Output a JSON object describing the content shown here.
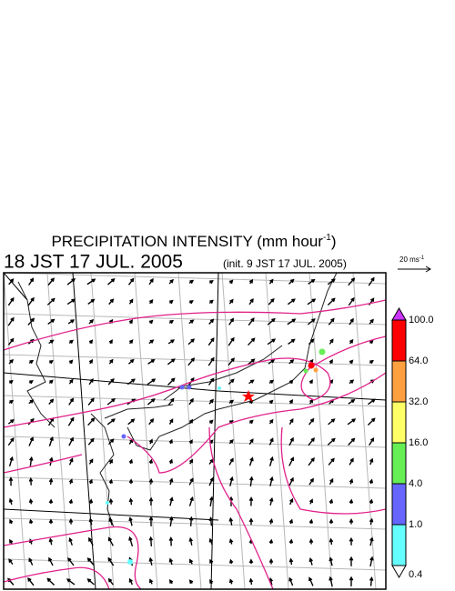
{
  "header": {
    "title": "PRECIPITATION INTENSITY (mm hour",
    "title_exponent": "-1",
    "title_end": ")",
    "valid_time": "18 JST 17 JUL. 2005",
    "init_time": "(init. 9 JST 17 JUL. 2005)"
  },
  "wind_scale": {
    "label": "20 ms",
    "exponent": "-1"
  },
  "colorbar": {
    "labels": [
      "100.0",
      "64.0",
      "32.0",
      "16.0",
      "4.0",
      "1.0",
      "0.4"
    ],
    "colors": [
      "#cc33ff",
      "#ff0000",
      "#ffa040",
      "#ffff66",
      "#66ee55",
      "#6666ff",
      "#66ffff",
      "#ffffff"
    ]
  }
}
